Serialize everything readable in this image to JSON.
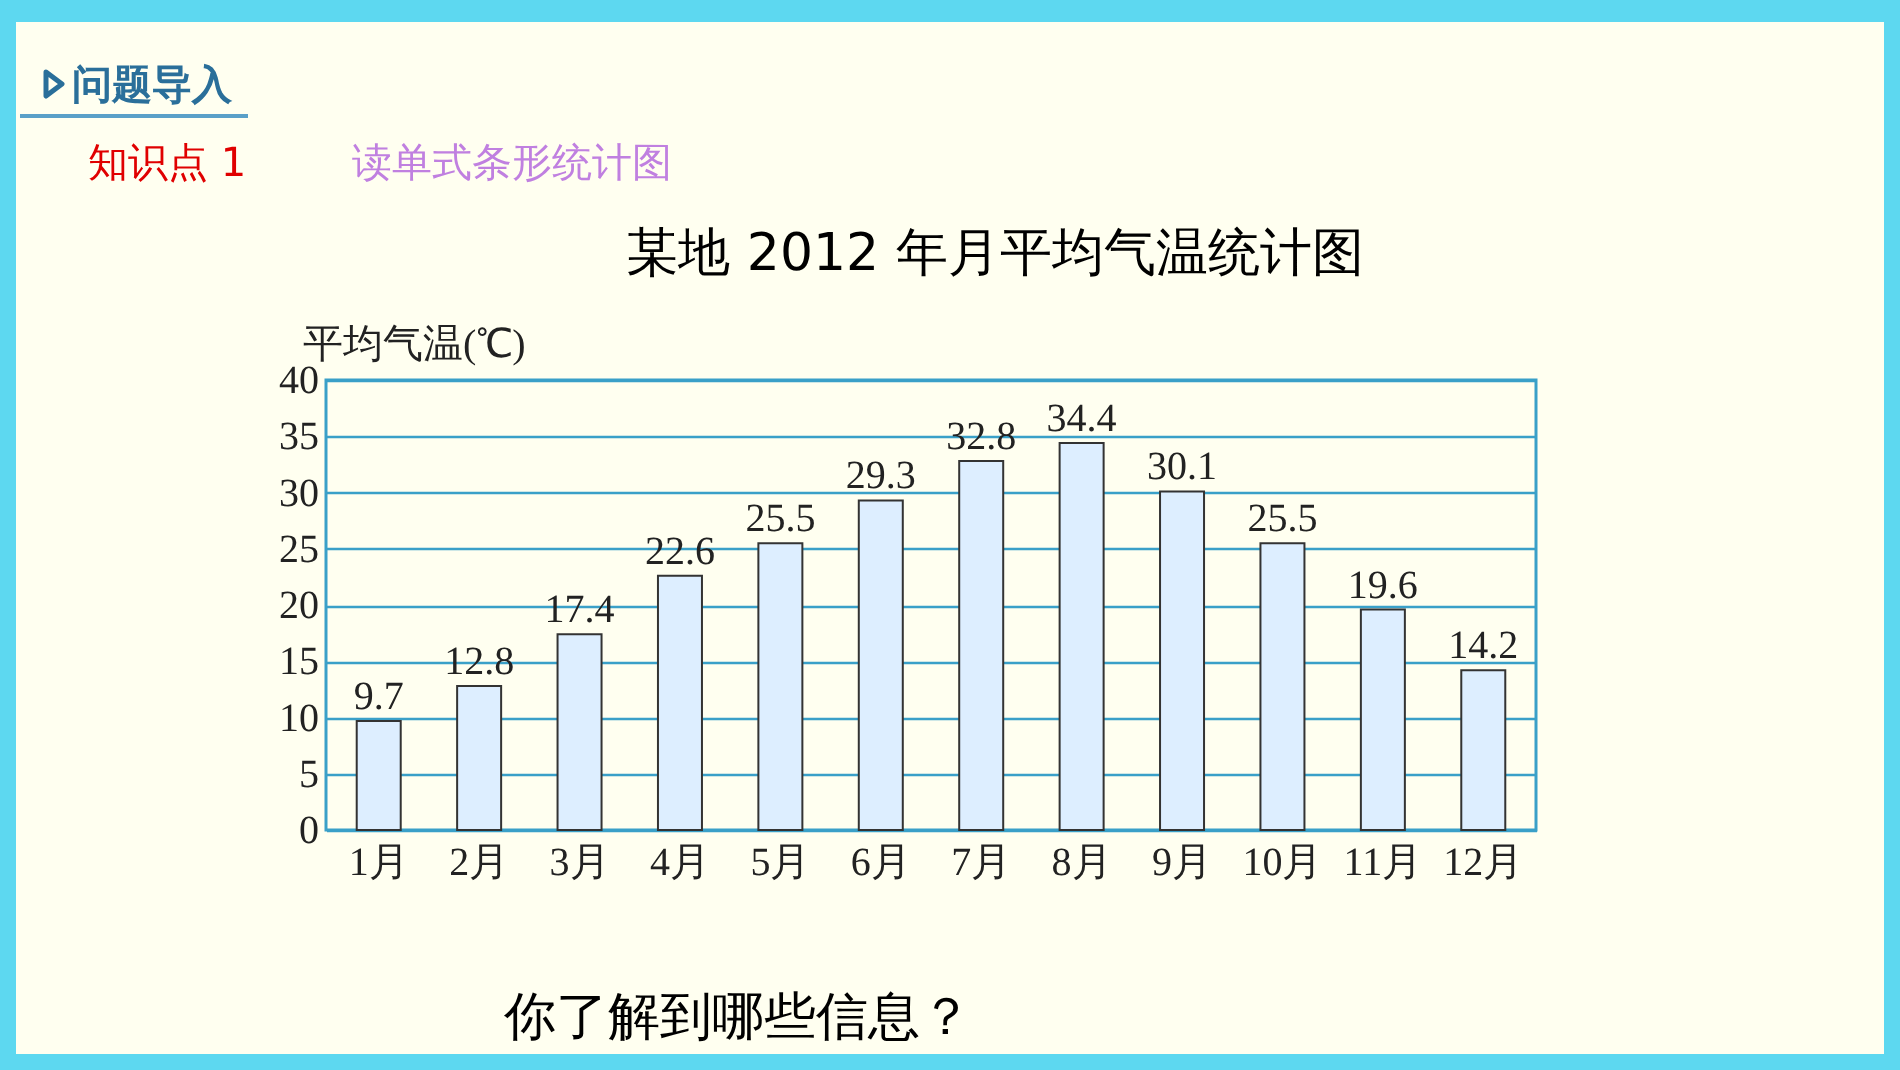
{
  "chart_data": {
    "type": "bar",
    "title": "某地 2012 年月平均气温统计图",
    "ylabel": "平均气温(℃)",
    "categories": [
      "1月",
      "2月",
      "3月",
      "4月",
      "5月",
      "6月",
      "7月",
      "8月",
      "9月",
      "10月",
      "11月",
      "12月"
    ],
    "values": [
      9.7,
      12.8,
      17.4,
      22.6,
      25.5,
      29.3,
      32.8,
      34.4,
      30.1,
      25.5,
      19.6,
      14.2
    ],
    "color": "#ddeeff",
    "ylim": [
      0,
      40
    ],
    "yticks": [
      0,
      5,
      10,
      15,
      20,
      25,
      30,
      35,
      40
    ],
    "grid": "y",
    "data_labels": true,
    "annotations": [
      "问题导入",
      "知识点 1",
      "读单式条形统计图",
      "你了解到哪些信息？"
    ]
  }
}
